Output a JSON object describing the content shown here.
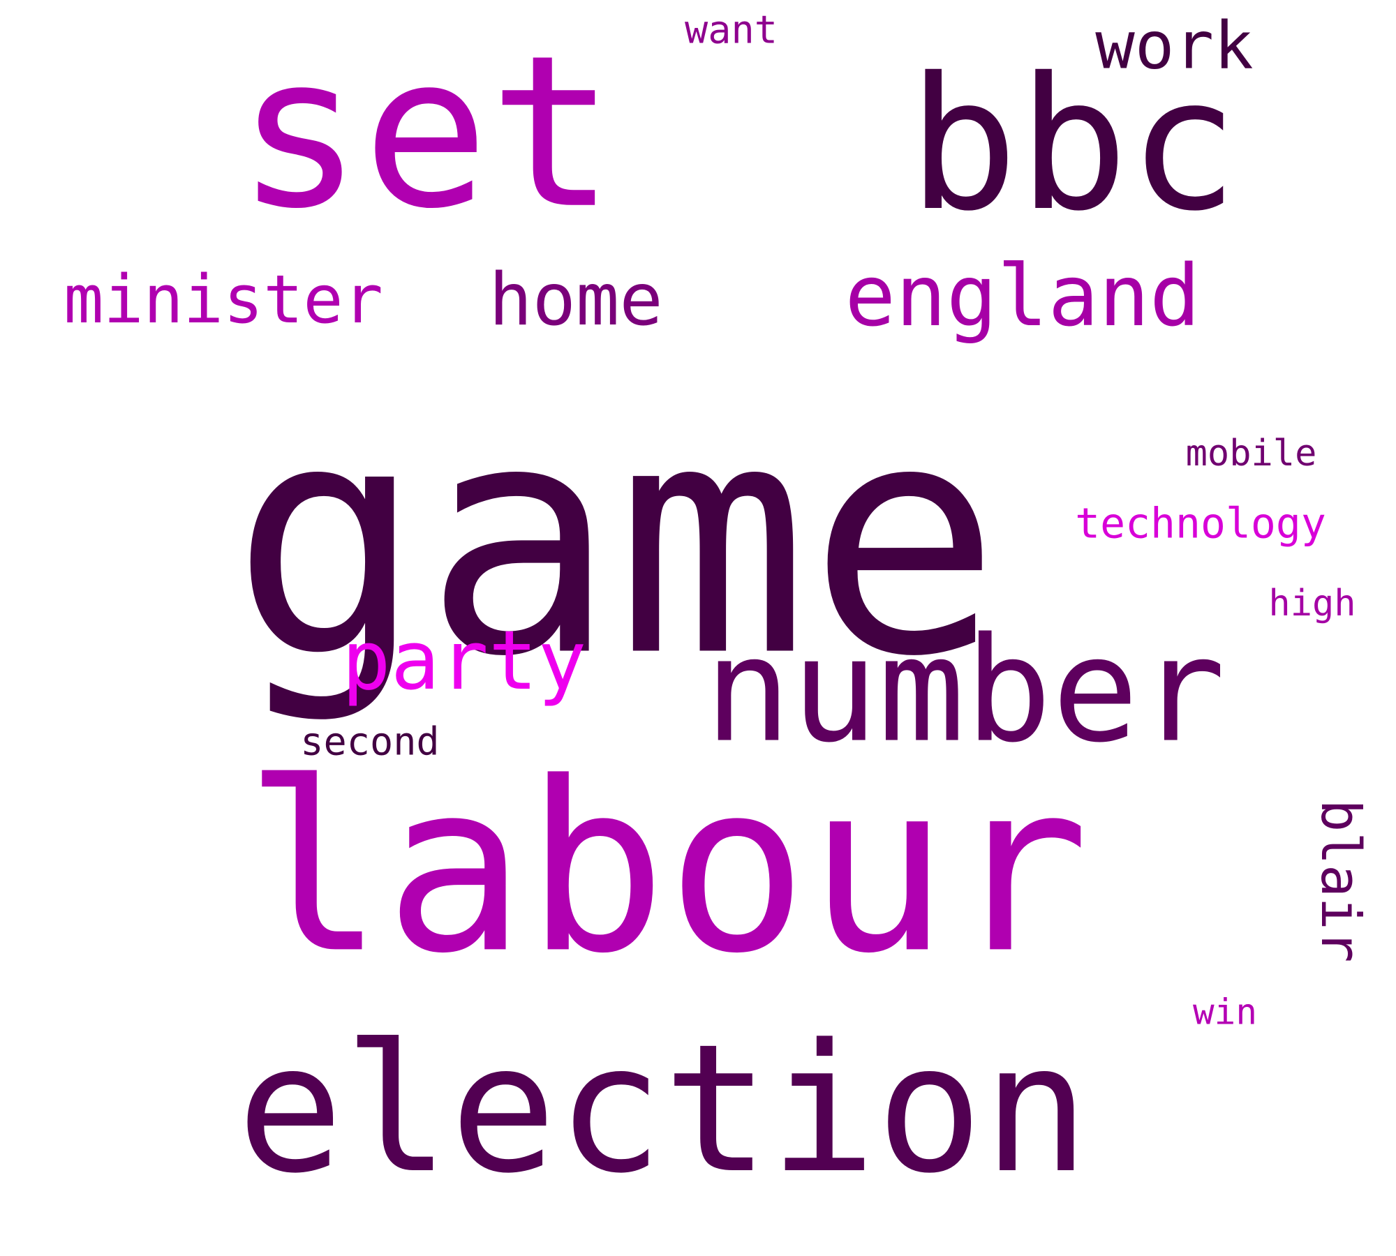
{
  "word_cloud": {
    "background": "#ffffff",
    "words": [
      {
        "text": "game",
        "color": "#420042",
        "orientation": "horizontal"
      },
      {
        "text": "labour",
        "color": "#b000b0",
        "orientation": "horizontal"
      },
      {
        "text": "election",
        "color": "#520052",
        "orientation": "horizontal"
      },
      {
        "text": "set",
        "color": "#b000b0",
        "orientation": "horizontal"
      },
      {
        "text": "bbc",
        "color": "#420042",
        "orientation": "horizontal"
      },
      {
        "text": "number",
        "color": "#5e005e",
        "orientation": "horizontal"
      },
      {
        "text": "england",
        "color": "#a600a6",
        "orientation": "horizontal"
      },
      {
        "text": "home",
        "color": "#7a007a",
        "orientation": "horizontal"
      },
      {
        "text": "minister",
        "color": "#b000b0",
        "orientation": "horizontal"
      },
      {
        "text": "party",
        "color": "#ee00ee",
        "orientation": "horizontal"
      },
      {
        "text": "work",
        "color": "#420042",
        "orientation": "horizontal"
      },
      {
        "text": "blair",
        "color": "#5e005e",
        "orientation": "vertical"
      },
      {
        "text": "technology",
        "color": "#d800d8",
        "orientation": "horizontal"
      },
      {
        "text": "mobile",
        "color": "#700070",
        "orientation": "horizontal"
      },
      {
        "text": "high",
        "color": "#a400a4",
        "orientation": "horizontal"
      },
      {
        "text": "second",
        "color": "#420042",
        "orientation": "horizontal"
      },
      {
        "text": "want",
        "color": "#8e008e",
        "orientation": "horizontal"
      },
      {
        "text": "win",
        "color": "#b400b4",
        "orientation": "horizontal"
      }
    ]
  }
}
